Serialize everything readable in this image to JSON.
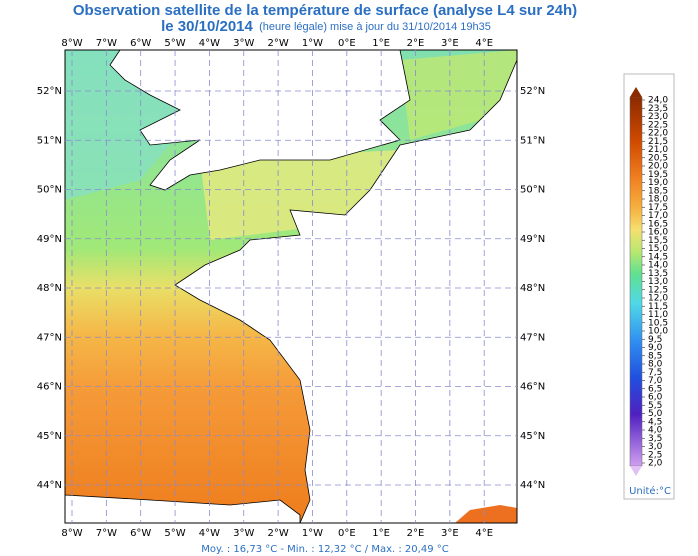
{
  "header": {
    "title": "Observation satellite de la température de surface (analyse L4 sur 24h)",
    "date": "le 30/10/2014",
    "note": "(heure légale) mise à jour du 31/10/2014 19h35"
  },
  "map": {
    "longitudes": [
      "8°W",
      "7°W",
      "6°W",
      "5°W",
      "4°W",
      "3°W",
      "2°W",
      "1°W",
      "0°E",
      "1°E",
      "2°E",
      "3°E",
      "4°E"
    ],
    "latitudes": [
      "52°N",
      "51°N",
      "50°N",
      "49°N",
      "48°N",
      "47°N",
      "46°N",
      "45°N",
      "44°N"
    ]
  },
  "legend": {
    "labels": [
      "24,0",
      "23,5",
      "23,0",
      "22,5",
      "22,0",
      "21,5",
      "21,0",
      "20,5",
      "20,0",
      "19,5",
      "19,0",
      "18,5",
      "18,0",
      "17,5",
      "17,0",
      "16,5",
      "16,0",
      "15,5",
      "15,0",
      "14,5",
      "14,0",
      "13,5",
      "13,0",
      "12,5",
      "12,0",
      "11,5",
      "11,0",
      "10,5",
      "10,0",
      "9,5",
      "9,0",
      "8,5",
      "8,0",
      "7,5",
      "7,0",
      "6,5",
      "6,0",
      "5,5",
      "5,0",
      "4,5",
      "4,0",
      "3,5",
      "3,0",
      "2,5",
      "2,0"
    ],
    "unit": "Unité:°C"
  },
  "stats": "Moy. : 16,73 °C   -   Min. : 12,32 °C / Max. : 20,49 °C"
}
